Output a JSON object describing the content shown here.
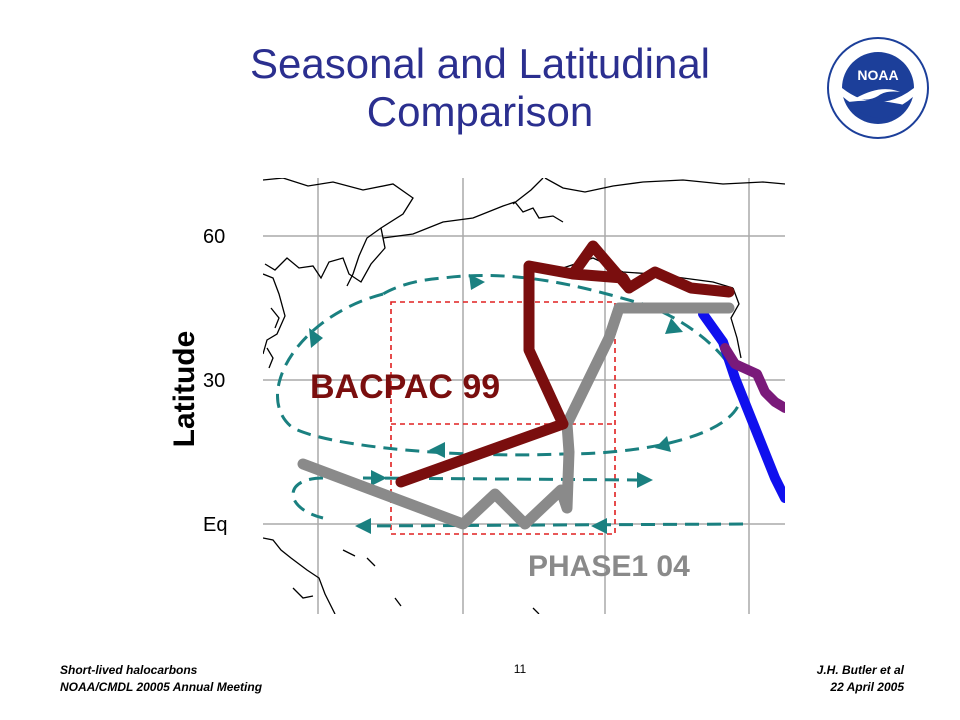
{
  "slide": {
    "title_line1": "Seasonal and Latitudinal",
    "title_line2": "Comparison",
    "axis_label": "Latitude",
    "ticks": {
      "lat60": "60",
      "lat30": "30",
      "eq": "Eq"
    },
    "tracks": {
      "bacpac": "BACPAC 99",
      "phase": "PHASE1 04"
    },
    "logo_text": "NOAA",
    "footer_left_line1": "Short-lived halocarbons",
    "footer_left_line2": "NOAA/CMDL 20005 Annual Meeting",
    "page_number": "11",
    "footer_right_line1": "J.H. Butler et al",
    "footer_right_line2": "22 April 2005"
  },
  "colors": {
    "title": "#2b2f8f",
    "bacpac_track": "#7a0e0e",
    "phase_track": "#8a8a8a",
    "circulation_arrows": "#1a8080",
    "study_box": "#e02020",
    "blue_track": "#1010ee",
    "purple_track": "#7a1a7a"
  }
}
